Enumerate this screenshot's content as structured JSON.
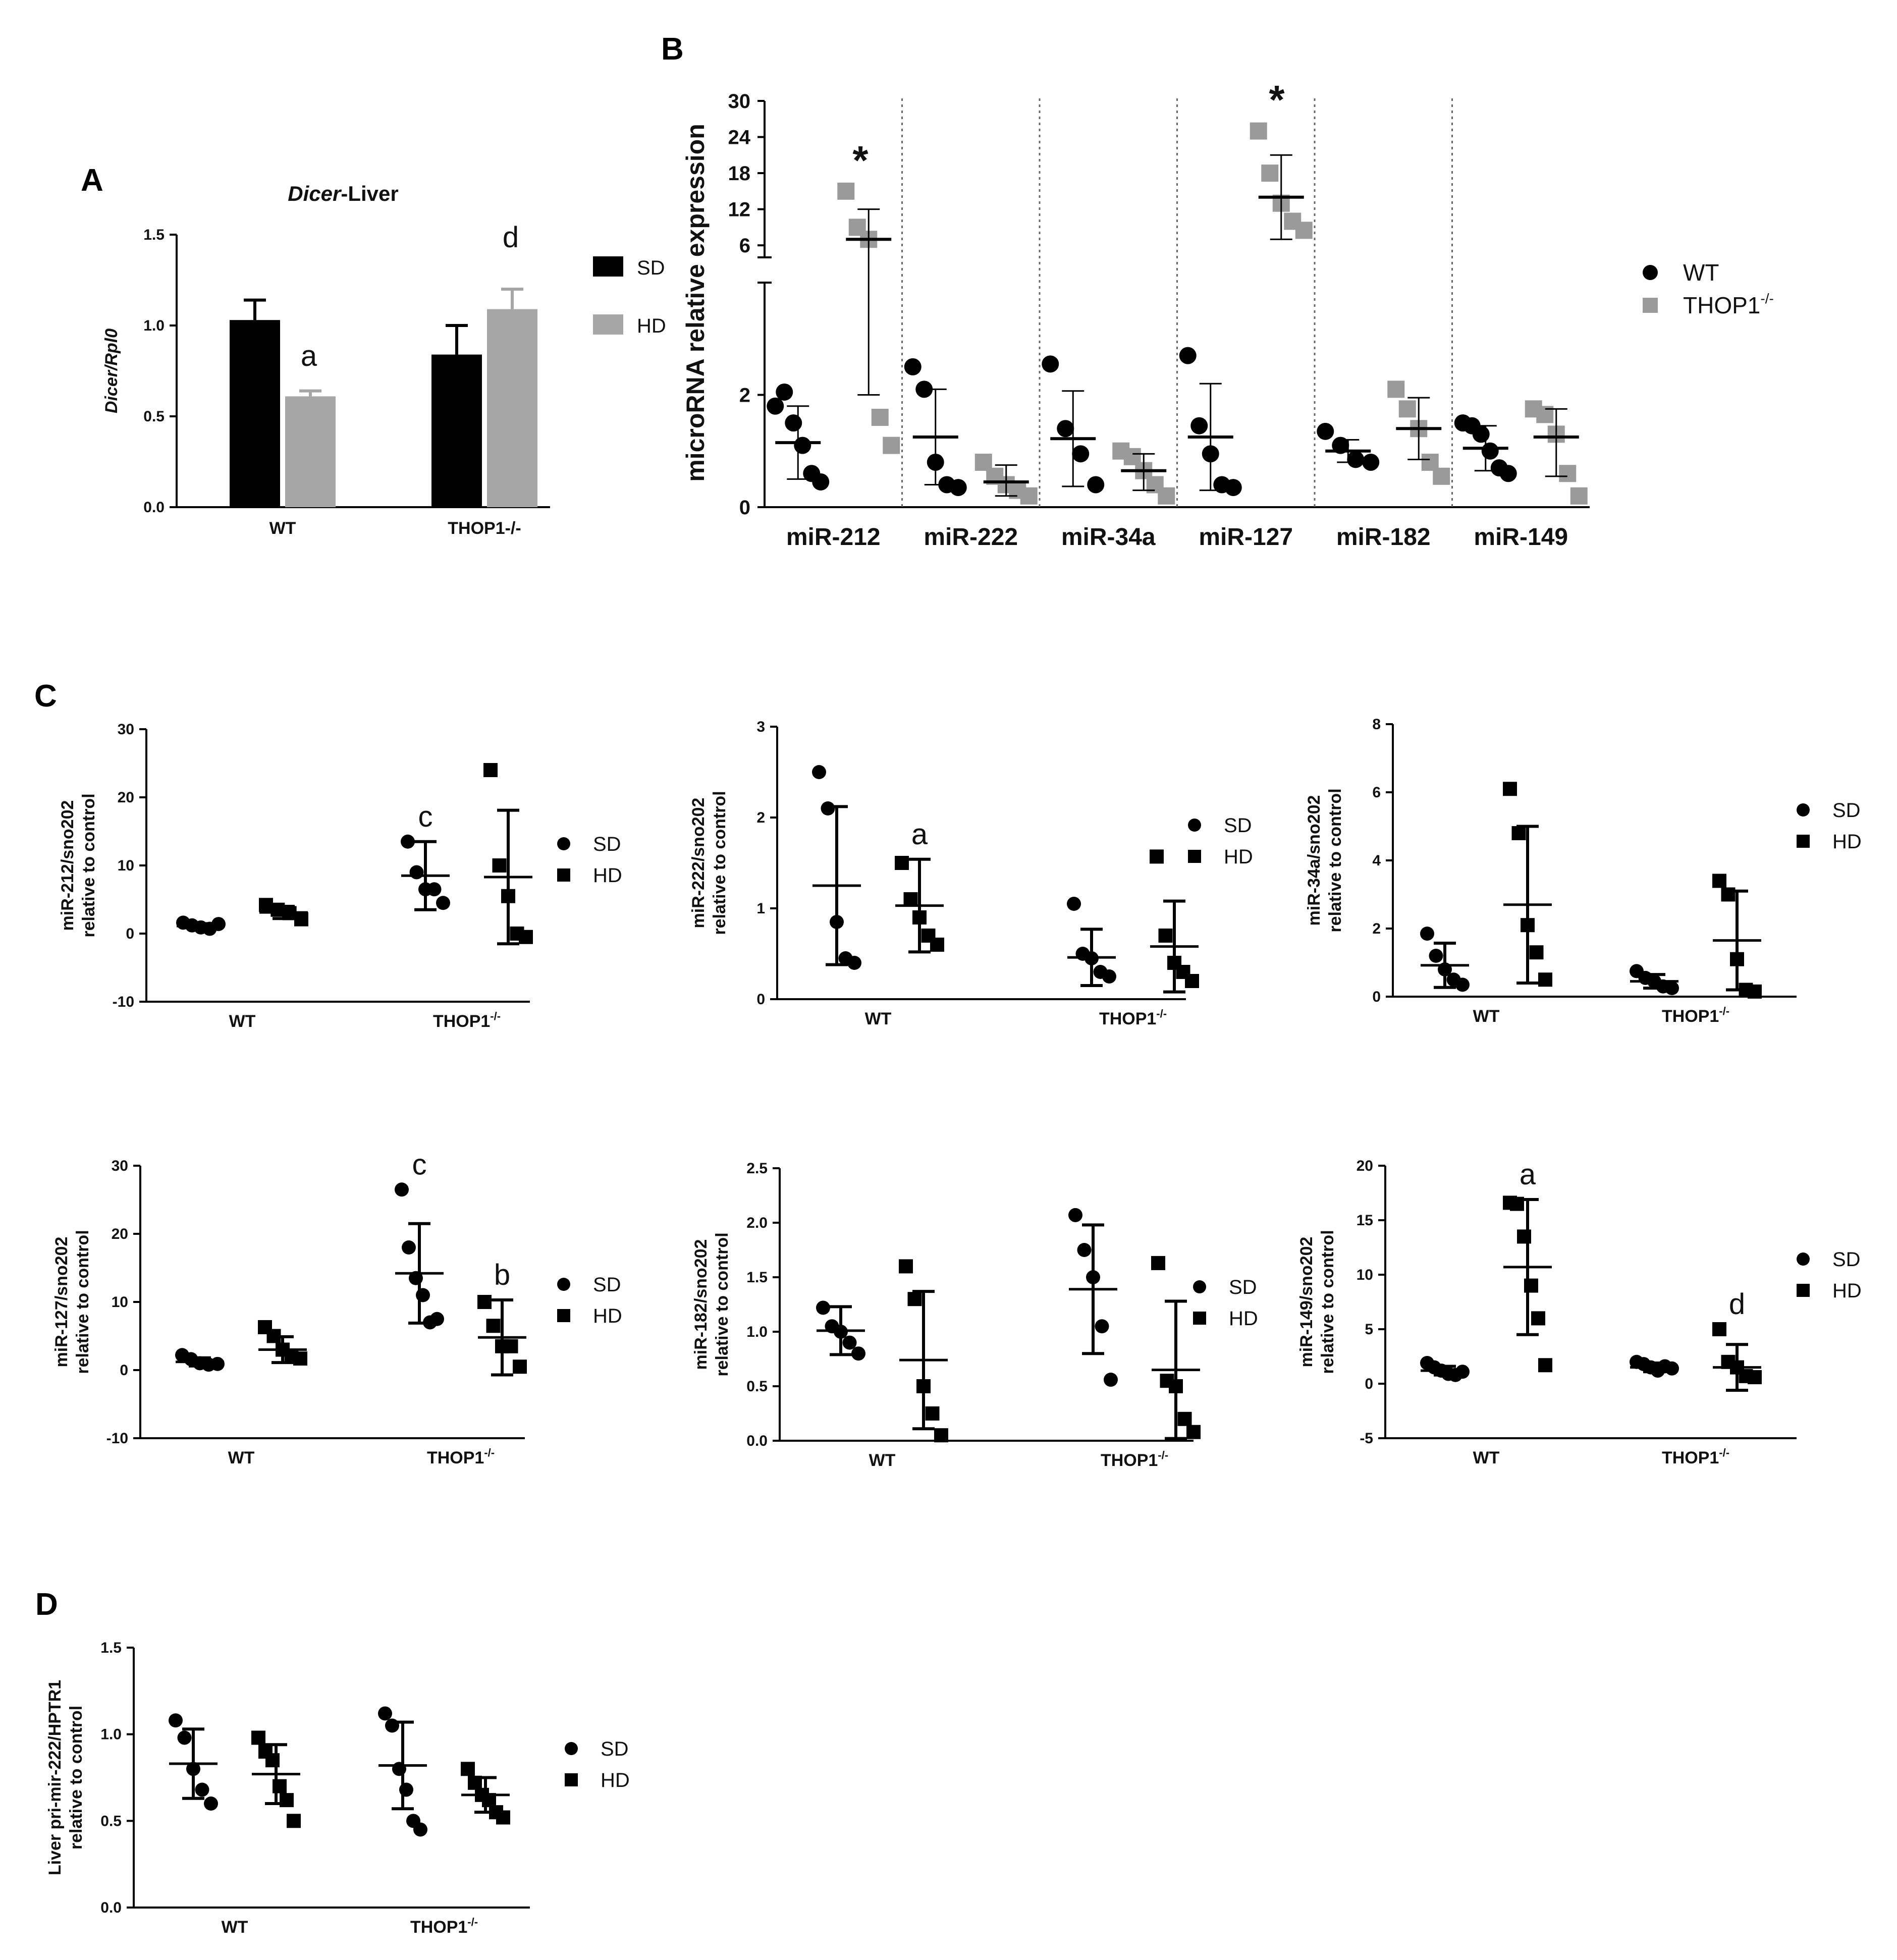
{
  "panels": {
    "a": "A",
    "b": "B",
    "c": "C",
    "d": "D"
  },
  "colors": {
    "sd": "#000000",
    "hd": "#a6a6a6",
    "wt": "#000000",
    "thop": "#9a9a9a"
  },
  "chart_data": [
    {
      "id": "A",
      "type": "bar",
      "title_italic": "Dicer",
      "title_rest": "-Liver",
      "ylabel": "Dicer/Rpl0",
      "categories": [
        "WT",
        "THOP1-/-"
      ],
      "ylim": [
        0,
        1.5
      ],
      "yticks": [
        "0.0",
        "0.5",
        "1.0",
        "1.5"
      ],
      "series": [
        {
          "name": "SD",
          "values": [
            1.03,
            0.84
          ],
          "errors": [
            0.11,
            0.16
          ]
        },
        {
          "name": "HD",
          "values": [
            0.61,
            1.09
          ],
          "errors": [
            0.03,
            0.11
          ]
        }
      ],
      "annotations": [
        "a",
        "d"
      ],
      "legend": "right"
    },
    {
      "id": "B",
      "type": "scatter",
      "ylabel": "microRNA relative expression",
      "categories": [
        "miR-212",
        "miR-222",
        "miR-34a",
        "miR-127",
        "miR-182",
        "miR-149"
      ],
      "broken_axis": true,
      "lower_ylim": [
        0,
        4
      ],
      "lower_yticks": [
        "0",
        "2"
      ],
      "upper_ylim": [
        4,
        30
      ],
      "upper_yticks": [
        "6",
        "12",
        "18",
        "24",
        "30"
      ],
      "series": [
        {
          "name": "WT",
          "sup": "",
          "points": [
            [
              1.8,
              2.05,
              1.5,
              1.1,
              0.6,
              0.45
            ],
            [
              2.5,
              2.1,
              0.8,
              0.4,
              0.35
            ],
            [
              2.55,
              1.4,
              0.95,
              0.4
            ],
            [
              2.7,
              1.45,
              0.95,
              0.4,
              0.35
            ],
            [
              1.35,
              1.1,
              0.85,
              0.8
            ],
            [
              1.5,
              1.45,
              1.3,
              1.0,
              0.7,
              0.6
            ]
          ],
          "mean": [
            1.15,
            1.25,
            1.22,
            1.25,
            1.0,
            1.05
          ],
          "sd": [
            0.65,
            0.85,
            0.85,
            0.95,
            0.2,
            0.4
          ]
        },
        {
          "name": "THOP1",
          "sup": "-/-",
          "points": [
            [
              15,
              9,
              7,
              1.6,
              1.1
            ],
            [
              0.8,
              0.55,
              0.4,
              0.3,
              0.2
            ],
            [
              1.0,
              0.9,
              0.65,
              0.4,
              0.2
            ],
            [
              25,
              18,
              13,
              10,
              8.5
            ],
            [
              2.1,
              1.75,
              1.4,
              0.8,
              0.55
            ],
            [
              1.75,
              1.65,
              1.3,
              0.6,
              0.2
            ]
          ],
          "mean": [
            7.0,
            0.45,
            0.65,
            14,
            1.4,
            1.25
          ],
          "sd_up": [
            5,
            0.3,
            0.3,
            7,
            0.55,
            0.5
          ],
          "sd_down": [
            5,
            0.25,
            0.35,
            7,
            0.55,
            0.7
          ]
        }
      ],
      "annotations": [
        "*",
        "*"
      ],
      "legend": "right"
    },
    {
      "id": "C1",
      "type": "scatter",
      "ylabel1": "miR-212/sno202",
      "ylabel2": "relative to control",
      "categories": [
        "WT",
        "THOP1"
      ],
      "cat_sup": [
        "",
        "-/-"
      ],
      "ylim": [
        -10,
        30
      ],
      "yticks": [
        "-10",
        "0",
        "10",
        "20",
        "30"
      ],
      "series": [
        {
          "name": "SD",
          "groups": [
            {
              "points": [
                1.6,
                1.2,
                0.9,
                0.7,
                1.4
              ],
              "mean": 1.1,
              "sd": 0.35
            },
            {
              "points": [
                13.5,
                9,
                6.5,
                6.5,
                4.5
              ],
              "mean": 8.5,
              "sd": 5
            }
          ]
        },
        {
          "name": "HD",
          "groups": [
            {
              "points": [
                4.2,
                3.5,
                3.0,
                2.1
              ],
              "mean": 3.1,
              "sd": 0.9
            },
            {
              "points": [
                24,
                10,
                5.5,
                0,
                -0.5
              ],
              "mean": 8.3,
              "sd": 9.8
            }
          ]
        }
      ],
      "annotations": [
        {
          "text": "c",
          "group": 1,
          "series": 0
        }
      ],
      "legend": "right"
    },
    {
      "id": "C2",
      "type": "scatter",
      "ylabel1": "miR-222/sno202",
      "ylabel2": "relative to control",
      "categories": [
        "WT",
        "THOP1"
      ],
      "cat_sup": [
        "",
        "-/-"
      ],
      "ylim": [
        0,
        3
      ],
      "yticks": [
        "0",
        "1",
        "2",
        "3"
      ],
      "series": [
        {
          "name": "SD",
          "groups": [
            {
              "points": [
                2.5,
                2.1,
                0.85,
                0.45,
                0.4
              ],
              "mean": 1.25,
              "sd": 0.87
            },
            {
              "points": [
                1.05,
                0.5,
                0.45,
                0.3,
                0.25
              ],
              "mean": 0.46,
              "sd": 0.31
            }
          ]
        },
        {
          "name": "HD",
          "groups": [
            {
              "points": [
                1.5,
                1.1,
                0.9,
                0.7,
                0.6
              ],
              "mean": 1.03,
              "sd": 0.51
            },
            {
              "points": [
                1.57,
                0.7,
                0.4,
                0.3,
                0.2
              ],
              "mean": 0.58,
              "sd": 0.5
            }
          ]
        }
      ],
      "annotations": [
        {
          "text": "a",
          "group": 0,
          "series": 1
        }
      ],
      "legend": "right"
    },
    {
      "id": "C3",
      "type": "scatter",
      "ylabel1": "miR-34a/sno202",
      "ylabel2": "relative to control",
      "categories": [
        "WT",
        "THOP1"
      ],
      "cat_sup": [
        "",
        "-/-"
      ],
      "ylim": [
        0,
        8
      ],
      "yticks": [
        "0",
        "2",
        "4",
        "6",
        "8"
      ],
      "series": [
        {
          "name": "SD",
          "groups": [
            {
              "points": [
                1.85,
                1.2,
                0.8,
                0.5,
                0.35
              ],
              "mean": 0.92,
              "sd": 0.65
            },
            {
              "points": [
                0.75,
                0.55,
                0.45,
                0.3,
                0.25
              ],
              "mean": 0.45,
              "sd": 0.2
            }
          ]
        },
        {
          "name": "HD",
          "groups": [
            {
              "points": [
                6.1,
                4.8,
                2.1,
                1.3,
                0.5
              ],
              "mean": 2.7,
              "sd": 2.3
            },
            {
              "points": [
                3.4,
                3.0,
                1.1,
                0.2,
                0.15
              ],
              "mean": 1.65,
              "sd": 1.45
            }
          ]
        }
      ],
      "annotations": [],
      "legend": "right"
    },
    {
      "id": "C4",
      "type": "scatter",
      "ylabel1": "miR-127/sno202",
      "ylabel2": "relative to control",
      "categories": [
        "WT",
        "THOP1"
      ],
      "cat_sup": [
        "",
        "-/-"
      ],
      "ylim": [
        -10,
        30
      ],
      "yticks": [
        "-10",
        "0",
        "10",
        "20",
        "30"
      ],
      "series": [
        {
          "name": "SD",
          "groups": [
            {
              "points": [
                2.2,
                1.6,
                1.0,
                0.8,
                0.9
              ],
              "mean": 1.2,
              "sd": 0.6
            },
            {
              "points": [
                26.5,
                18,
                13.5,
                11,
                7,
                7.5
              ],
              "mean": 14.2,
              "sd": 7.3
            }
          ]
        },
        {
          "name": "HD",
          "groups": [
            {
              "points": [
                6.3,
                5.0,
                3.0,
                2.0,
                1.7
              ],
              "mean": 3.0,
              "sd": 1.9
            },
            {
              "points": [
                10,
                6.5,
                3.5,
                3.5,
                0.5
              ],
              "mean": 4.8,
              "sd": 5.5
            }
          ]
        }
      ],
      "annotations": [
        {
          "text": "c",
          "group": 1,
          "series": 0
        },
        {
          "text": "b",
          "group": 1,
          "series": 1
        }
      ],
      "legend": "right"
    },
    {
      "id": "C5",
      "type": "scatter",
      "ylabel1": "miR-182/sno202",
      "ylabel2": "relative to control",
      "categories": [
        "WT",
        "THOP1"
      ],
      "cat_sup": [
        "",
        "-/-"
      ],
      "ylim": [
        0,
        2.5
      ],
      "yticks": [
        "0.0",
        "0.5",
        "1.0",
        "1.5",
        "2.0",
        "2.5"
      ],
      "series": [
        {
          "name": "SD",
          "groups": [
            {
              "points": [
                1.22,
                1.05,
                1.0,
                0.9,
                0.8
              ],
              "mean": 1.01,
              "sd": 0.22
            },
            {
              "points": [
                2.07,
                1.75,
                1.5,
                1.05,
                0.56
              ],
              "mean": 1.39,
              "sd": 0.59
            }
          ]
        },
        {
          "name": "HD",
          "groups": [
            {
              "points": [
                1.6,
                1.3,
                0.5,
                0.25,
                0.05
              ],
              "mean": 0.74,
              "sd": 0.63
            },
            {
              "points": [
                1.63,
                0.55,
                0.5,
                0.2,
                0.08
              ],
              "mean": 0.65,
              "sd": 0.63
            }
          ]
        }
      ],
      "annotations": [],
      "legend": "right"
    },
    {
      "id": "C6",
      "type": "scatter",
      "ylabel1": "miR-149/sno202",
      "ylabel2": "relative to control",
      "categories": [
        "WT",
        "THOP1"
      ],
      "cat_sup": [
        "",
        "-/-"
      ],
      "ylim": [
        -5,
        20
      ],
      "yticks": [
        "-5",
        "0",
        "5",
        "10",
        "15",
        "20"
      ],
      "series": [
        {
          "name": "SD",
          "groups": [
            {
              "points": [
                1.9,
                1.5,
                1.2,
                0.9,
                0.8,
                1.1
              ],
              "mean": 1.2,
              "sd": 0.4
            },
            {
              "points": [
                2.0,
                1.8,
                1.5,
                1.2,
                1.6,
                1.4
              ],
              "mean": 1.5,
              "sd": 0.4
            }
          ]
        },
        {
          "name": "HD",
          "groups": [
            {
              "points": [
                16.6,
                16.5,
                13.5,
                9,
                6,
                1.7
              ],
              "mean": 10.7,
              "sd": 6.2
            },
            {
              "points": [
                5.0,
                2.0,
                1.5,
                0.7,
                0.6
              ],
              "mean": 1.5,
              "sd": 2.1
            }
          ]
        }
      ],
      "annotations": [
        {
          "text": "a",
          "group": 0,
          "series": 1
        },
        {
          "text": "d",
          "group": 1,
          "series": 1
        }
      ],
      "legend": "right"
    },
    {
      "id": "D",
      "type": "scatter",
      "ylabel1": "Liver pri-mir-222/HPTR1",
      "ylabel2": "relative to control",
      "categories": [
        "WT",
        "THOP1"
      ],
      "cat_sup": [
        "",
        "-/-"
      ],
      "ylim": [
        0,
        1.5
      ],
      "yticks": [
        "0.0",
        "0.5",
        "1.0",
        "1.5"
      ],
      "series": [
        {
          "name": "SD",
          "groups": [
            {
              "points": [
                1.08,
                0.98,
                0.8,
                0.68,
                0.6
              ],
              "mean": 0.83,
              "sd": 0.2
            },
            {
              "points": [
                1.12,
                1.05,
                0.8,
                0.68,
                0.5,
                0.45
              ],
              "mean": 0.82,
              "sd": 0.25
            }
          ]
        },
        {
          "name": "HD",
          "groups": [
            {
              "points": [
                0.98,
                0.9,
                0.85,
                0.7,
                0.62,
                0.5
              ],
              "mean": 0.77,
              "sd": 0.17
            },
            {
              "points": [
                0.8,
                0.72,
                0.65,
                0.62,
                0.55,
                0.52
              ],
              "mean": 0.65,
              "sd": 0.1
            }
          ]
        }
      ],
      "annotations": [],
      "legend": "right"
    }
  ]
}
